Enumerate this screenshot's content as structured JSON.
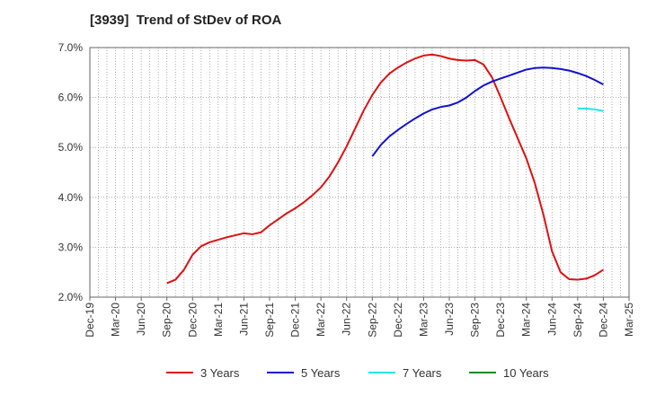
{
  "chart_data": {
    "type": "line",
    "title": "[3939]  Trend of StDev of ROA",
    "xlabel": "",
    "ylabel": "",
    "ylim": [
      2.0,
      7.0
    ],
    "y_ticks": [
      "2.0%",
      "3.0%",
      "4.0%",
      "5.0%",
      "6.0%",
      "7.0%"
    ],
    "x_ticks": [
      "Dec-19",
      "Mar-20",
      "Jun-20",
      "Sep-20",
      "Dec-20",
      "Mar-21",
      "Jun-21",
      "Sep-21",
      "Dec-21",
      "Mar-22",
      "Jun-22",
      "Sep-22",
      "Dec-22",
      "Mar-23",
      "Jun-23",
      "Sep-23",
      "Dec-23",
      "Mar-24",
      "Jun-24",
      "Sep-24",
      "Dec-24",
      "Mar-25"
    ],
    "grid": true,
    "legend_position": "bottom",
    "series": [
      {
        "name": "3 Years",
        "color": "#dd1111",
        "points": [
          [
            "Sep-20",
            2.28
          ],
          [
            "Oct-20",
            2.35
          ],
          [
            "Nov-20",
            2.55
          ],
          [
            "Dec-20",
            2.85
          ],
          [
            "Jan-21",
            3.02
          ],
          [
            "Feb-21",
            3.1
          ],
          [
            "Mar-21",
            3.15
          ],
          [
            "Apr-21",
            3.2
          ],
          [
            "May-21",
            3.24
          ],
          [
            "Jun-21",
            3.28
          ],
          [
            "Jul-21",
            3.26
          ],
          [
            "Aug-21",
            3.3
          ],
          [
            "Sep-21",
            3.44
          ],
          [
            "Oct-21",
            3.56
          ],
          [
            "Nov-21",
            3.68
          ],
          [
            "Dec-21",
            3.78
          ],
          [
            "Jan-22",
            3.9
          ],
          [
            "Feb-22",
            4.04
          ],
          [
            "Mar-22",
            4.2
          ],
          [
            "Apr-22",
            4.42
          ],
          [
            "May-22",
            4.7
          ],
          [
            "Jun-22",
            5.02
          ],
          [
            "Jul-22",
            5.38
          ],
          [
            "Aug-22",
            5.74
          ],
          [
            "Sep-22",
            6.05
          ],
          [
            "Oct-22",
            6.3
          ],
          [
            "Nov-22",
            6.48
          ],
          [
            "Dec-22",
            6.6
          ],
          [
            "Jan-23",
            6.7
          ],
          [
            "Feb-23",
            6.78
          ],
          [
            "Mar-23",
            6.84
          ],
          [
            "Apr-23",
            6.86
          ],
          [
            "May-23",
            6.83
          ],
          [
            "Jun-23",
            6.78
          ],
          [
            "Jul-23",
            6.75
          ],
          [
            "Aug-23",
            6.74
          ],
          [
            "Sep-23",
            6.75
          ],
          [
            "Oct-23",
            6.66
          ],
          [
            "Nov-23",
            6.4
          ],
          [
            "Dec-23",
            6.0
          ],
          [
            "Jan-24",
            5.58
          ],
          [
            "Feb-24",
            5.18
          ],
          [
            "Mar-24",
            4.78
          ],
          [
            "Apr-24",
            4.28
          ],
          [
            "May-24",
            3.65
          ],
          [
            "Jun-24",
            2.92
          ],
          [
            "Jul-24",
            2.5
          ],
          [
            "Aug-24",
            2.36
          ],
          [
            "Sep-24",
            2.35
          ],
          [
            "Oct-24",
            2.37
          ],
          [
            "Nov-24",
            2.44
          ],
          [
            "Dec-24",
            2.55
          ]
        ]
      },
      {
        "name": "5 Years",
        "color": "#1111cc",
        "points": [
          [
            "Sep-22",
            4.82
          ],
          [
            "Oct-22",
            5.05
          ],
          [
            "Nov-22",
            5.22
          ],
          [
            "Dec-22",
            5.35
          ],
          [
            "Jan-23",
            5.47
          ],
          [
            "Feb-23",
            5.58
          ],
          [
            "Mar-23",
            5.68
          ],
          [
            "Apr-23",
            5.76
          ],
          [
            "May-23",
            5.81
          ],
          [
            "Jun-23",
            5.84
          ],
          [
            "Jul-23",
            5.9
          ],
          [
            "Aug-23",
            6.0
          ],
          [
            "Sep-23",
            6.13
          ],
          [
            "Oct-23",
            6.24
          ],
          [
            "Nov-23",
            6.32
          ],
          [
            "Dec-23",
            6.38
          ],
          [
            "Jan-24",
            6.44
          ],
          [
            "Feb-24",
            6.5
          ],
          [
            "Mar-24",
            6.56
          ],
          [
            "Apr-24",
            6.59
          ],
          [
            "May-24",
            6.6
          ],
          [
            "Jun-24",
            6.59
          ],
          [
            "Jul-24",
            6.57
          ],
          [
            "Aug-24",
            6.54
          ],
          [
            "Sep-24",
            6.49
          ],
          [
            "Oct-24",
            6.43
          ],
          [
            "Nov-24",
            6.35
          ],
          [
            "Dec-24",
            6.26
          ]
        ]
      },
      {
        "name": "7 Years",
        "color": "#22e5e5",
        "points": [
          [
            "Sep-24",
            5.78
          ],
          [
            "Oct-24",
            5.78
          ],
          [
            "Nov-24",
            5.76
          ],
          [
            "Dec-24",
            5.73
          ]
        ]
      },
      {
        "name": "10 Years",
        "color": "#228822",
        "points": []
      }
    ]
  }
}
